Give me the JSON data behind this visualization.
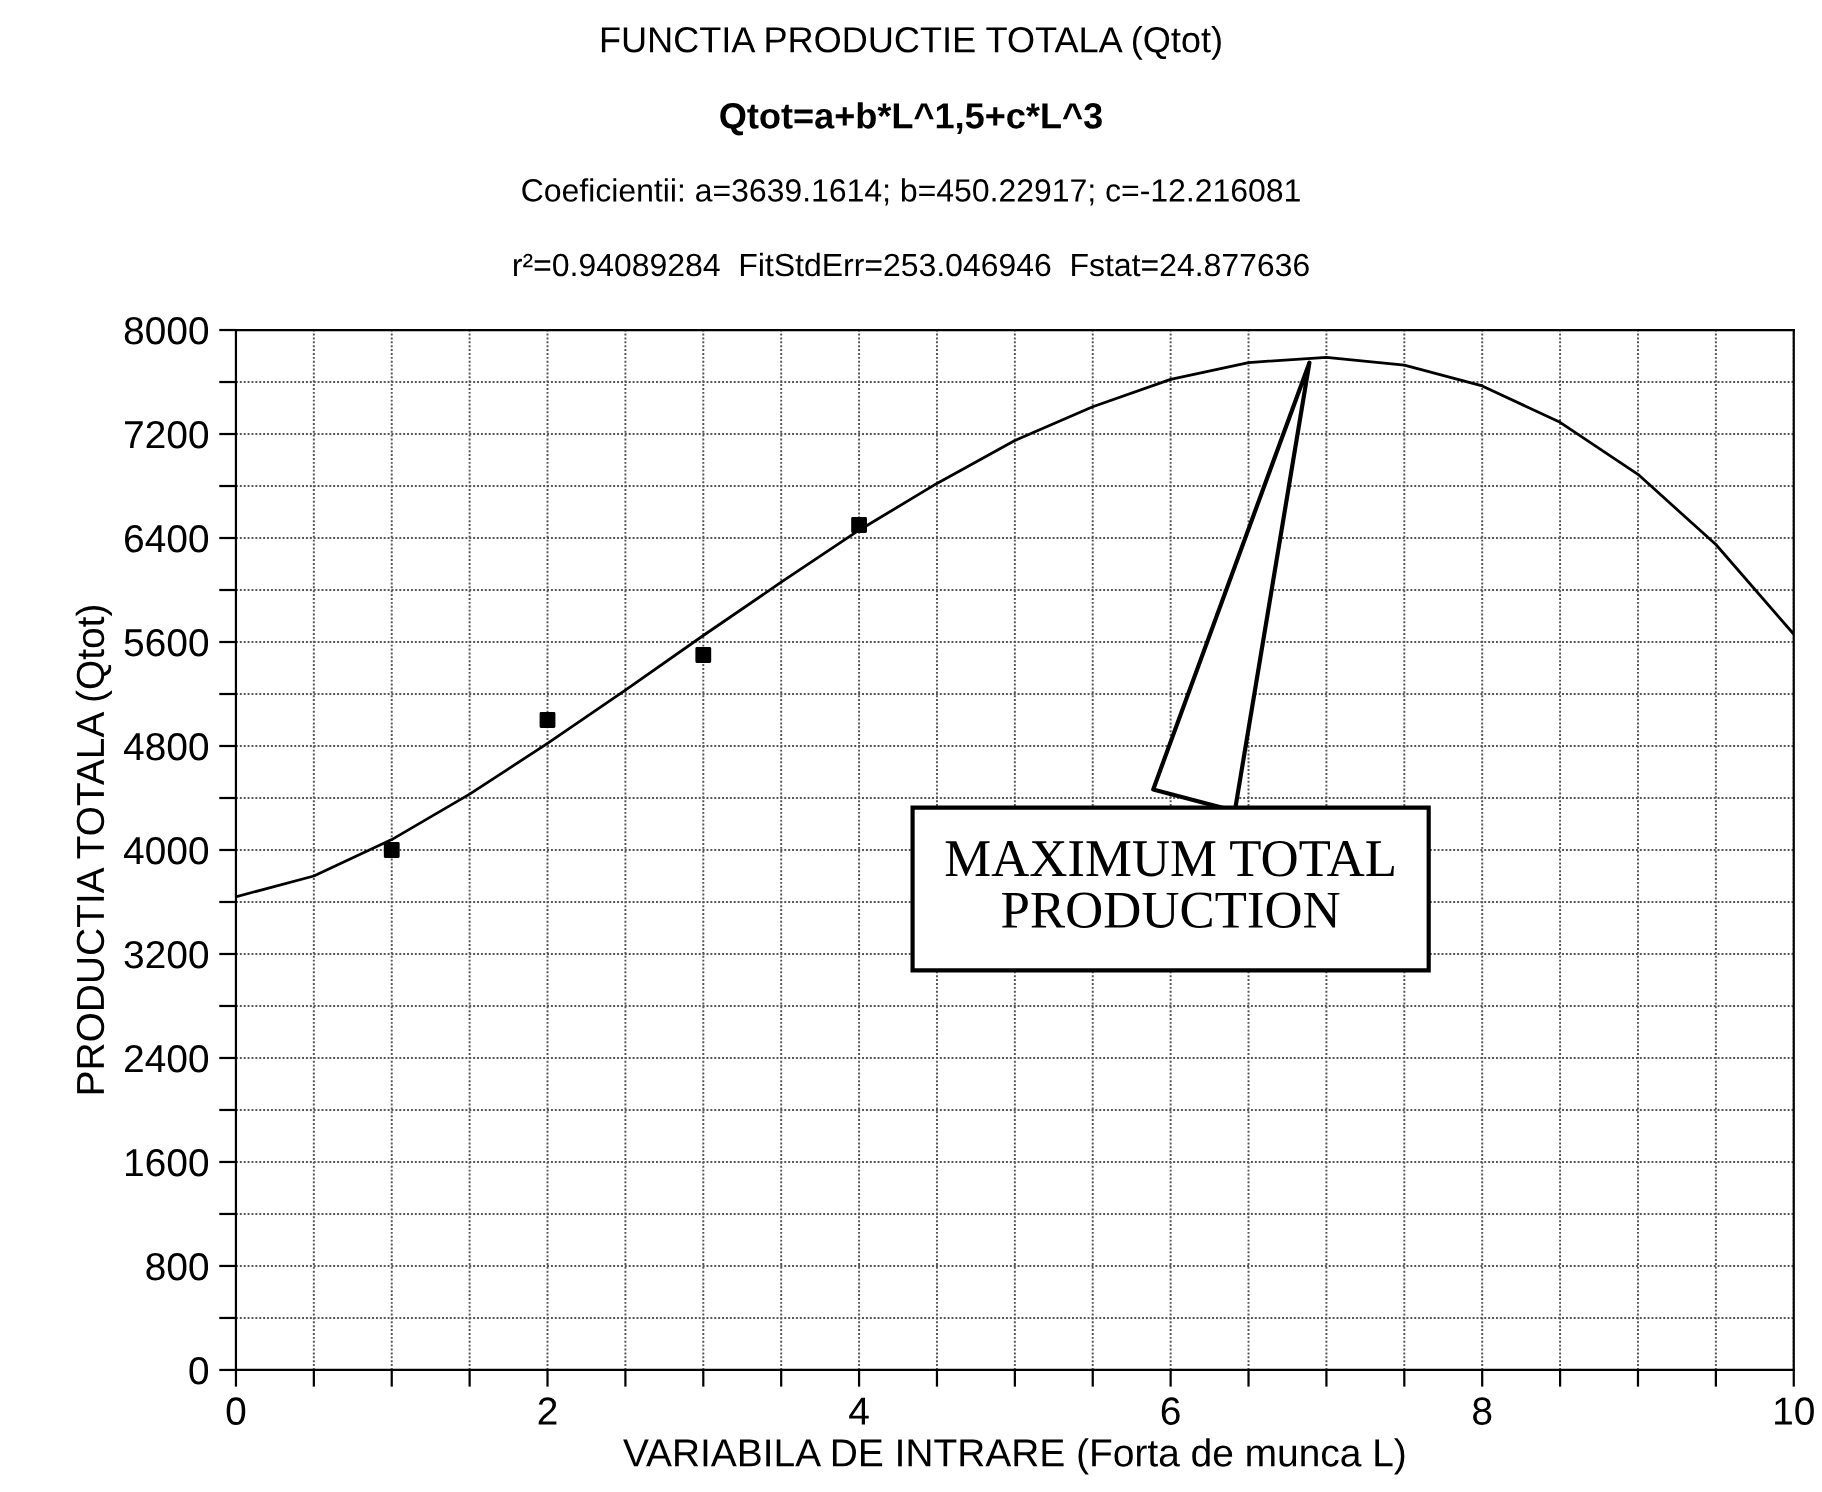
{
  "chart_data": {
    "type": "line",
    "title": "FUNCTIA PRODUCTIE TOTALA (Qtot)",
    "subtitle": "Qtot=a+b*L^1,5+c*L^3",
    "xlabel": "VARIABILA DE INTRARE (Forta de munca L)",
    "ylabel": "PRODUCTIA TOTALA (Qtot)",
    "annotations": [
      "Coeficientii: a=3639.1614; b=450.22917; c=-12.216081",
      "r²=0.94089284  FitStdErr=253.046946  Fstat=24.877636",
      {
        "text": "MAXIMUM TOTAL PRODUCTION",
        "x": 6.9,
        "y": 7790
      }
    ],
    "series": [
      {
        "type": "line",
        "color": "#000000",
        "marker": "none",
        "line_style": "solid",
        "x": [
          0,
          0.5,
          1,
          1.5,
          2,
          2.5,
          3,
          3.5,
          4,
          4.5,
          5,
          5.5,
          6,
          6.5,
          7,
          7.5,
          8,
          8.5,
          9,
          9.5,
          10
        ],
        "values": [
          3640,
          3800,
          4080,
          4430,
          4820,
          5230,
          5650,
          6060,
          6460,
          6820,
          7150,
          7410,
          7620,
          7750,
          7790,
          7730,
          7570,
          7290,
          6890,
          6350,
          5660
        ]
      },
      {
        "type": "scatter",
        "color": "#000000",
        "marker": "square",
        "x": [
          1,
          2,
          3,
          4
        ],
        "values": [
          4000,
          5000,
          5500,
          6500
        ]
      }
    ],
    "xlim": [
      0,
      10
    ],
    "ylim": [
      0,
      8000
    ],
    "xticks": [
      0,
      {
        "value": 0.5,
        "label": null
      },
      {
        "value": 1,
        "label": null
      },
      {
        "value": 1.5,
        "label": null
      },
      2,
      {
        "value": 2.5,
        "label": null
      },
      {
        "value": 3,
        "label": null
      },
      {
        "value": 3.5,
        "label": null
      },
      4,
      {
        "value": 4.5,
        "label": null
      },
      {
        "value": 5,
        "label": null
      },
      {
        "value": 5.5,
        "label": null
      },
      6,
      {
        "value": 6.5,
        "label": null
      },
      {
        "value": 7,
        "label": null
      },
      {
        "value": 7.5,
        "label": null
      },
      8,
      {
        "value": 8.5,
        "label": null
      },
      {
        "value": 9,
        "label": null
      },
      {
        "value": 9.5,
        "label": null
      },
      10
    ],
    "yticks": [
      0,
      {
        "value": 400,
        "label": null
      },
      800,
      {
        "value": 1200,
        "label": null
      },
      1600,
      {
        "value": 2000,
        "label": null
      },
      2400,
      {
        "value": 2800,
        "label": null
      },
      3200,
      {
        "value": 3600,
        "label": null
      },
      4000,
      {
        "value": 4400,
        "label": null
      },
      4800,
      {
        "value": 5200,
        "label": null
      },
      5600,
      {
        "value": 6000,
        "label": null
      },
      6400,
      {
        "value": 6800,
        "label": null
      },
      7200,
      {
        "value": 7600,
        "label": null
      },
      8000
    ],
    "grid": true,
    "legend": false
  }
}
